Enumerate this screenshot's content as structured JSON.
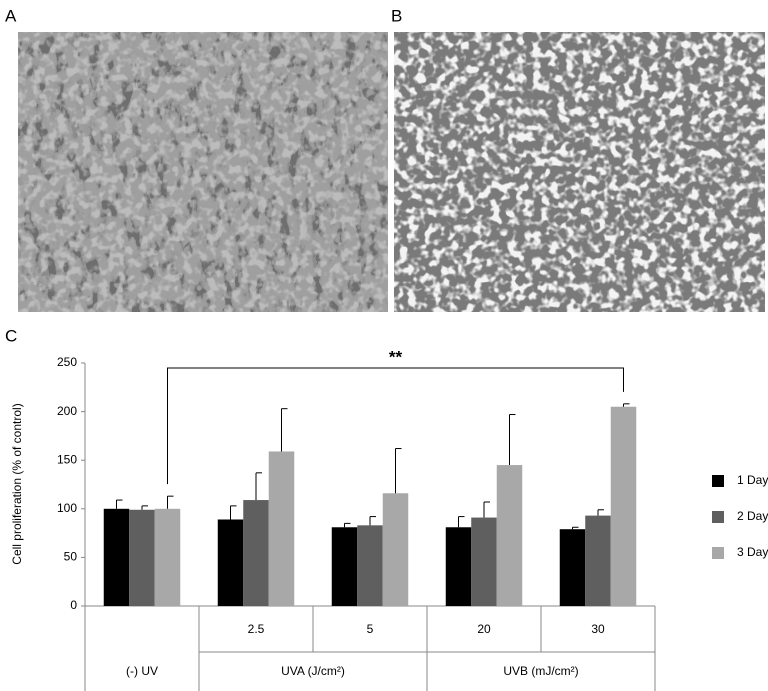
{
  "panel_labels": [
    "A",
    "B",
    "C"
  ],
  "chart_data": {
    "type": "bar",
    "ylabel": "Cell proliferation (% of control)",
    "categories": [
      null,
      "2.5",
      "5",
      "20",
      "30"
    ],
    "groups": [
      {
        "label": "(-) UV",
        "size": 1
      },
      {
        "label": "UVA (J/cm²)",
        "size": 2
      },
      {
        "label": "UVB (mJ/cm²)",
        "size": 2
      }
    ],
    "series": [
      {
        "name": "1 Day",
        "color": "#000000",
        "values": [
          100,
          89,
          81,
          81,
          79
        ],
        "errors": [
          9,
          14,
          4,
          11,
          2
        ]
      },
      {
        "name": "2 Day",
        "color": "#5f5f5f",
        "values": [
          99,
          109,
          83,
          91,
          93
        ],
        "errors": [
          4,
          28,
          9,
          16,
          6
        ]
      },
      {
        "name": "3 Day",
        "color": "#a8a8a8",
        "values": [
          100,
          159,
          116,
          145,
          205
        ],
        "errors": [
          13,
          44,
          46,
          52,
          3
        ]
      }
    ],
    "ylim": [
      0,
      250
    ],
    "yticks": [
      0,
      50,
      100,
      150,
      200,
      250
    ],
    "annotation": "**",
    "legend": "right"
  }
}
